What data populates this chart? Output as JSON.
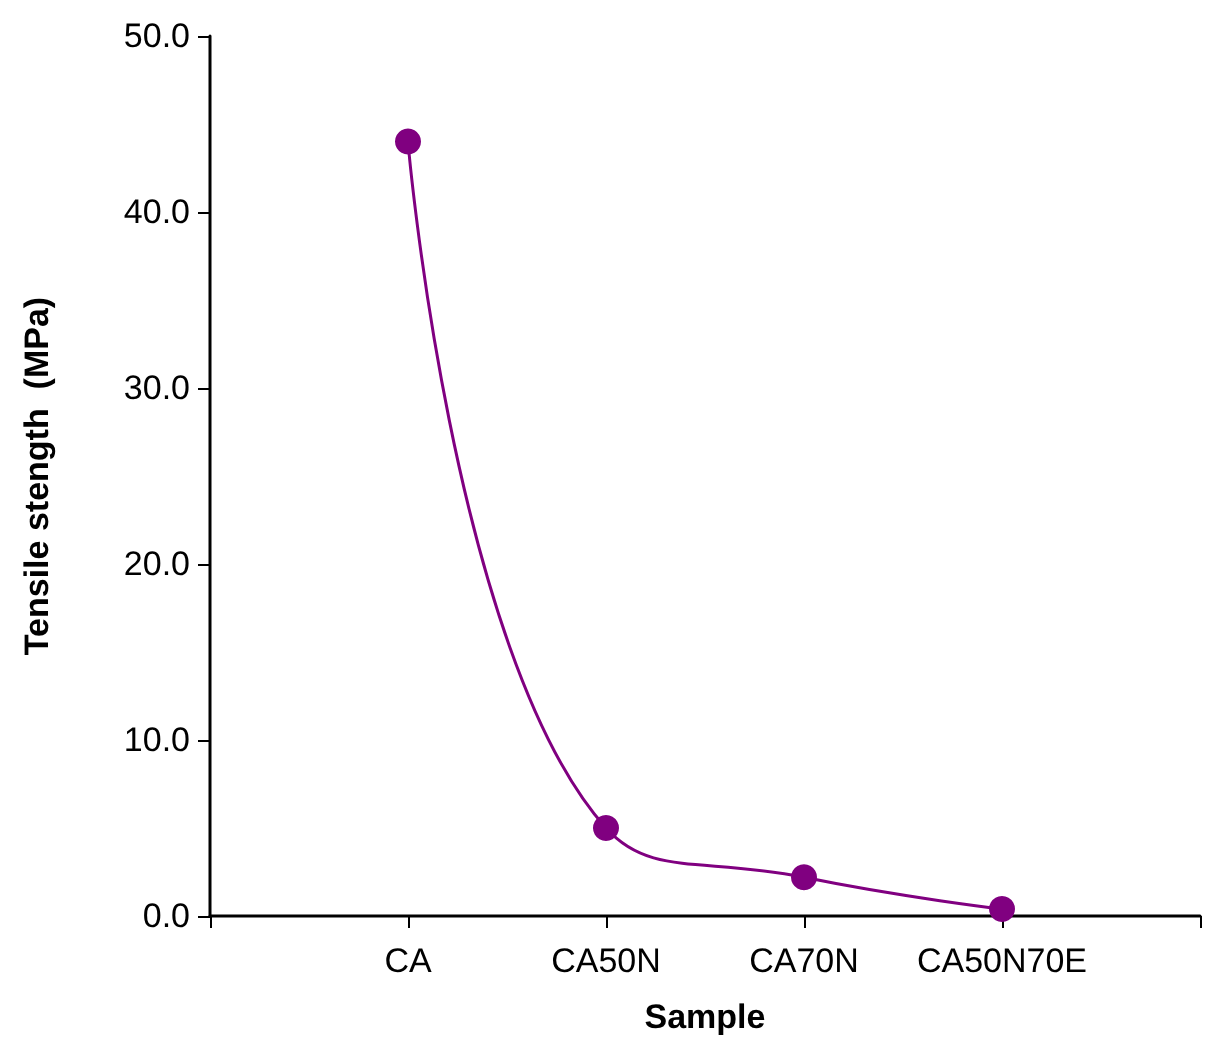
{
  "chart_data": {
    "type": "line",
    "xlabel": "Sample",
    "ylabel": "Tensile stength  (MPa)",
    "categories": [
      null,
      "CA",
      "CA50N",
      "CA70N",
      "CA50N70E",
      null
    ],
    "series": [
      {
        "color": "#800080",
        "values": [
          null,
          44.0,
          5.0,
          2.2,
          0.4,
          null
        ]
      }
    ],
    "ylim": [
      0,
      50
    ],
    "yticks": [
      {
        "value": 0,
        "label": "0.0"
      },
      {
        "value": 10,
        "label": "10.0"
      },
      {
        "value": 20,
        "label": "20.0"
      },
      {
        "value": 30,
        "label": "30.0"
      },
      {
        "value": 40,
        "label": "40.0"
      },
      {
        "value": 50,
        "label": "50.0"
      }
    ],
    "marker": "circle",
    "line_style": "solid",
    "grid": false
  }
}
